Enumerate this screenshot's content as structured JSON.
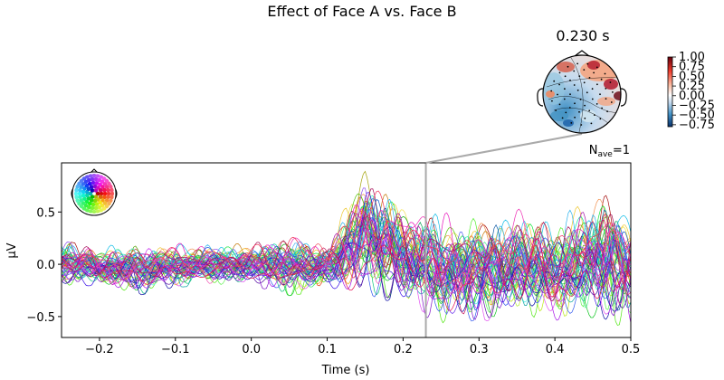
{
  "chart_data": {
    "type": "line",
    "title": "Effect of Face A vs. Face B",
    "xlabel": "Time (s)",
    "ylabel": "µV",
    "xlim": [
      -0.25,
      0.5
    ],
    "ylim": [
      -0.7,
      0.97
    ],
    "xticks": [
      -0.2,
      -0.1,
      0.0,
      0.1,
      0.2,
      0.3,
      0.4,
      0.5
    ],
    "xtick_labels": [
      "−0.2",
      "−0.1",
      "0.0",
      "0.1",
      "0.2",
      "0.3",
      "0.4",
      "0.5"
    ],
    "yticks": [
      -0.5,
      0.0,
      0.5
    ],
    "ytick_labels": [
      "−0.5",
      "0.0",
      "0.5"
    ],
    "grid": false,
    "annotation_nave": {
      "prefix": "N",
      "subscript": "ave",
      "suffix": "=1"
    },
    "highlight_time": 0.23,
    "n_channels": 60,
    "series_note": "butterfly plot, one trace per EEG channel, coloured by sensor location",
    "envelope": {
      "x": [
        -0.25,
        -0.2,
        -0.15,
        -0.1,
        -0.05,
        0.0,
        0.05,
        0.1,
        0.15,
        0.2,
        0.25,
        0.3,
        0.35,
        0.4,
        0.45,
        0.5
      ],
      "upper": [
        0.22,
        0.18,
        0.2,
        0.2,
        0.2,
        0.2,
        0.3,
        0.22,
        0.9,
        0.6,
        0.5,
        0.45,
        0.55,
        0.4,
        0.75,
        0.55
      ],
      "lower": [
        -0.22,
        -0.2,
        -0.3,
        -0.22,
        -0.2,
        -0.2,
        -0.3,
        -0.25,
        -0.3,
        -0.38,
        -0.58,
        -0.55,
        -0.5,
        -0.55,
        -0.55,
        -0.6
      ]
    },
    "topomap": {
      "title": "0.230 s",
      "colorbar_ticks": [
        1.0,
        0.75,
        0.5,
        0.25,
        0.0,
        -0.25,
        -0.5,
        -0.75
      ],
      "colorbar_labels": [
        "1.00",
        "0.75",
        "0.50",
        "0.25",
        "0.00",
        "−0.25",
        "−0.50",
        "−0.75"
      ],
      "vmin": -0.8,
      "vmax": 1.0
    },
    "colors": {
      "envelope": "#000000",
      "highlight_line": "#aaaaaa",
      "cmap_neg": "#08306b",
      "cmap_pos": "#67000d"
    }
  }
}
